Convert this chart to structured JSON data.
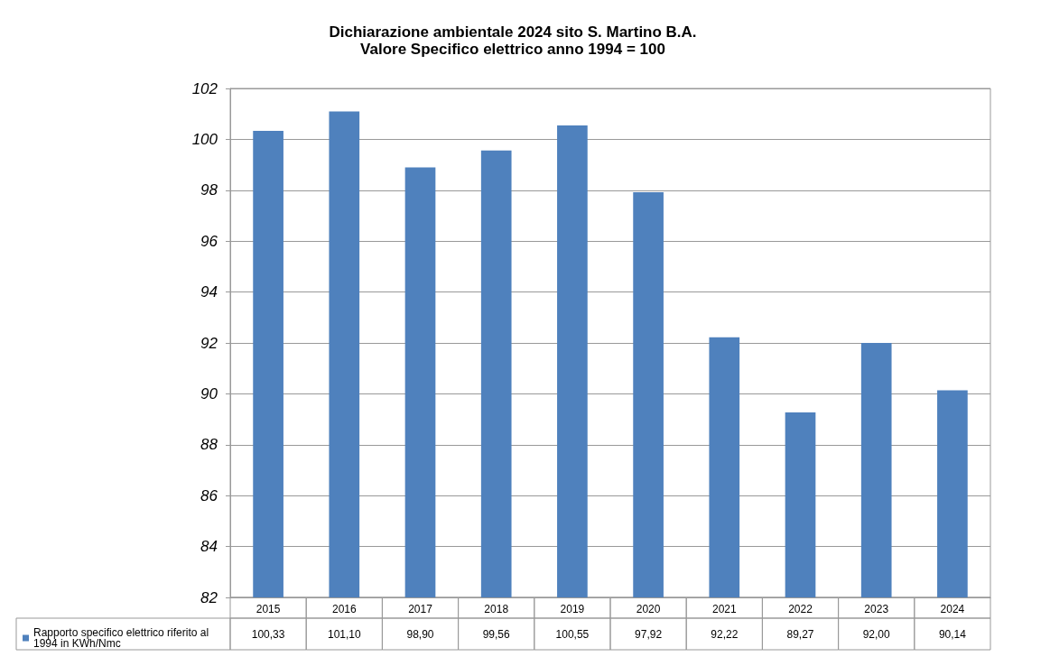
{
  "chart_data": {
    "type": "bar",
    "title": "Dichiarazione ambientale 2024 sito S. Martino B.A.",
    "subtitle": "Valore Specifico elettrico anno 1994 = 100",
    "categories": [
      "2015",
      "2016",
      "2017",
      "2018",
      "2019",
      "2020",
      "2021",
      "2022",
      "2023",
      "2024"
    ],
    "series": [
      {
        "name": "Rapporto specifico elettrico riferito al 1994 in KWh/Nmc",
        "color": "#4f81bd",
        "values": [
          100.33,
          101.1,
          98.9,
          99.56,
          100.55,
          97.92,
          92.22,
          89.27,
          92.0,
          90.14
        ],
        "value_labels": [
          "100,33",
          "101,10",
          "98,90",
          "99,56",
          "100,55",
          "97,92",
          "92,22",
          "89,27",
          "92,00",
          "90,14"
        ]
      }
    ],
    "ylim": [
      82,
      102
    ],
    "yticks": [
      82,
      84,
      86,
      88,
      90,
      92,
      94,
      96,
      98,
      100,
      102
    ],
    "grid": "y",
    "legend": "bottom"
  }
}
